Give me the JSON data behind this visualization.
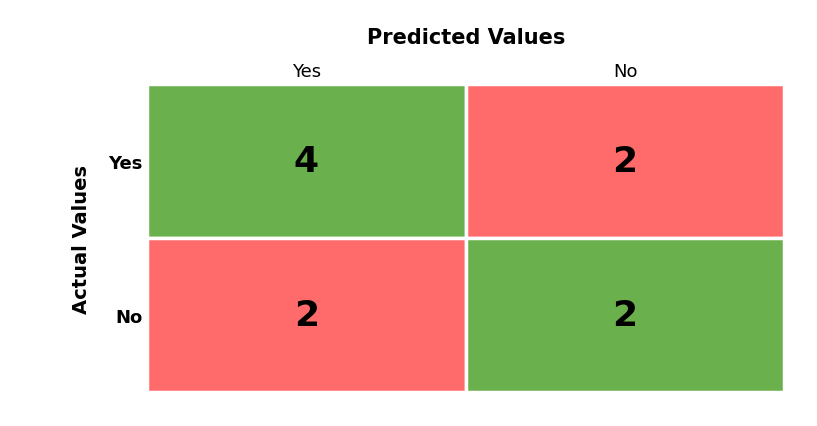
{
  "matrix": [
    [
      4,
      2
    ],
    [
      2,
      2
    ]
  ],
  "colors": [
    [
      "#6ab04c",
      "#ff6b6b"
    ],
    [
      "#ff6b6b",
      "#6ab04c"
    ]
  ],
  "predicted_labels": [
    "Yes",
    "No"
  ],
  "actual_labels": [
    "Yes",
    "No"
  ],
  "title": "Predicted Values",
  "ylabel": "Actual Values",
  "title_fontsize": 15,
  "axis_label_fontsize": 14,
  "tick_fontsize": 13,
  "value_fontsize": 26,
  "background_color": "#ffffff",
  "cell_text_color": "#000000",
  "cell_linewidth": 2.5
}
